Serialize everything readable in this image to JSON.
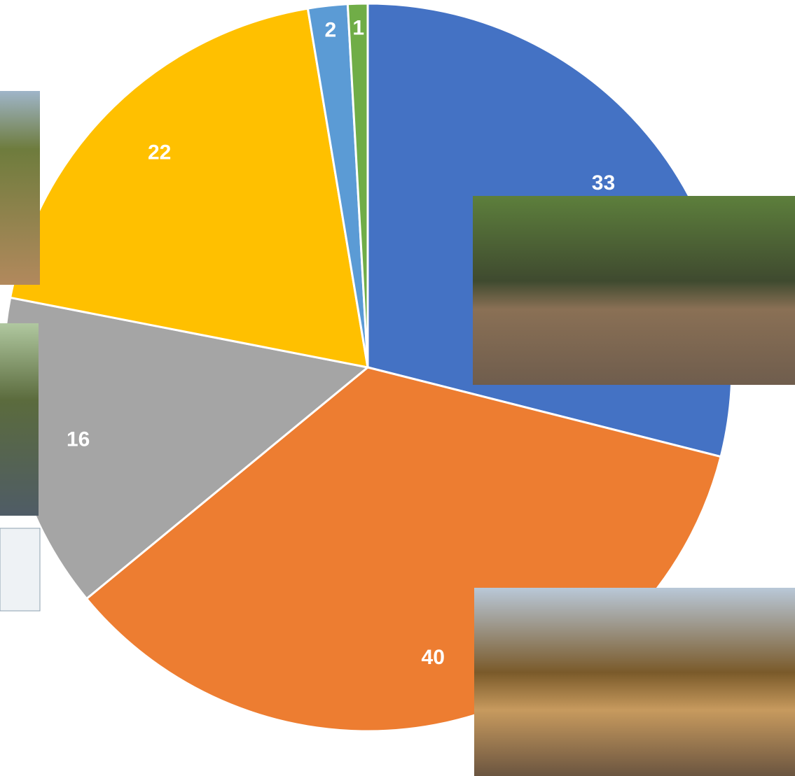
{
  "chart_data": {
    "type": "pie",
    "values": [
      33,
      40,
      16,
      22,
      2,
      1
    ],
    "colors": [
      "#4472c4",
      "#ed7d31",
      "#a5a5a5",
      "#ffc000",
      "#5b9bd5",
      "#70ad47"
    ],
    "start_angle": 0,
    "direction": "clockwise"
  }
}
